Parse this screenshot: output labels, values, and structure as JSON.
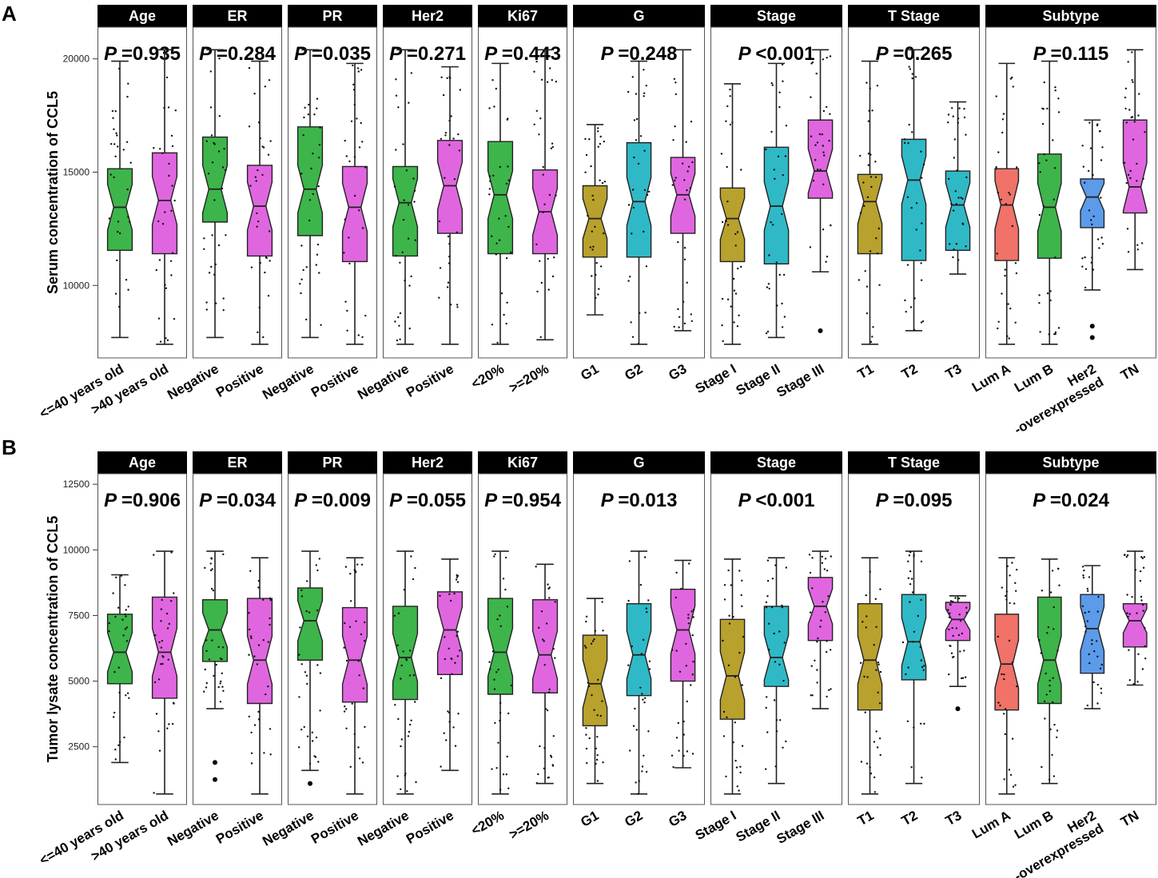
{
  "colors": {
    "green": "#3DB54A",
    "magenta": "#E066E0",
    "olive": "#B8A12C",
    "teal": "#2FB9C6",
    "salmon": "#F07268",
    "blue": "#5B9BEA",
    "strip_bg": "#000000",
    "strip_text": "#ffffff",
    "panel_border": "#555555"
  },
  "chart_data": [
    {
      "type": "boxplot",
      "label": "A",
      "ylabel": "Serum concentration of CCL5",
      "ylim": [
        6800,
        21400
      ],
      "yticks": [
        10000,
        15000,
        20000
      ],
      "facets": [
        {
          "title": "Age",
          "p_value": "=0.935",
          "groups": [
            {
              "name": "<=40 years old",
              "color": "green",
              "whisker_low": 7700,
              "q1": 11550,
              "median": 13450,
              "q3": 15150,
              "whisker_high": 19900,
              "outliers": []
            },
            {
              "name": ">40 years old",
              "color": "magenta",
              "whisker_low": 7400,
              "q1": 11400,
              "median": 13750,
              "q3": 15850,
              "whisker_high": 20400,
              "outliers": []
            }
          ]
        },
        {
          "title": "ER",
          "p_value": "=0.284",
          "groups": [
            {
              "name": "Negative",
              "color": "green",
              "whisker_low": 7700,
              "q1": 12800,
              "median": 14250,
              "q3": 16550,
              "whisker_high": 20400,
              "outliers": []
            },
            {
              "name": "Positive",
              "color": "magenta",
              "whisker_low": 7400,
              "q1": 11300,
              "median": 13500,
              "q3": 15300,
              "whisker_high": 19900,
              "outliers": []
            }
          ]
        },
        {
          "title": "PR",
          "p_value": "=0.035",
          "groups": [
            {
              "name": "Negative",
              "color": "green",
              "whisker_low": 7700,
              "q1": 12200,
              "median": 14250,
              "q3": 17000,
              "whisker_high": 20400,
              "outliers": []
            },
            {
              "name": "Positive",
              "color": "magenta",
              "whisker_low": 7400,
              "q1": 11050,
              "median": 13450,
              "q3": 15250,
              "whisker_high": 19800,
              "outliers": []
            }
          ]
        },
        {
          "title": "Her2",
          "p_value": "=0.271",
          "groups": [
            {
              "name": "Negative",
              "color": "green",
              "whisker_low": 7400,
              "q1": 11300,
              "median": 13650,
              "q3": 15250,
              "whisker_high": 20400,
              "outliers": []
            },
            {
              "name": "Positive",
              "color": "magenta",
              "whisker_low": 7400,
              "q1": 12300,
              "median": 14400,
              "q3": 16400,
              "whisker_high": 19650,
              "outliers": []
            }
          ]
        },
        {
          "title": "Ki67",
          "p_value": "=0.443",
          "groups": [
            {
              "name": "<20%",
              "color": "green",
              "whisker_low": 7400,
              "q1": 11400,
              "median": 14000,
              "q3": 16350,
              "whisker_high": 19800,
              "outliers": []
            },
            {
              "name": ">=20%",
              "color": "magenta",
              "whisker_low": 7600,
              "q1": 11400,
              "median": 13250,
              "q3": 15100,
              "whisker_high": 20400,
              "outliers": []
            }
          ]
        },
        {
          "title": "G",
          "p_value": "=0.248",
          "groups": [
            {
              "name": "G1",
              "color": "olive",
              "whisker_low": 8700,
              "q1": 11250,
              "median": 12950,
              "q3": 14400,
              "whisker_high": 17100,
              "outliers": []
            },
            {
              "name": "G2",
              "color": "teal",
              "whisker_low": 7400,
              "q1": 11250,
              "median": 13700,
              "q3": 16300,
              "whisker_high": 19900,
              "outliers": []
            },
            {
              "name": "G3",
              "color": "magenta",
              "whisker_low": 8000,
              "q1": 12300,
              "median": 14000,
              "q3": 15650,
              "whisker_high": 20400,
              "outliers": []
            }
          ]
        },
        {
          "title": "Stage",
          "p_value": "<0.001",
          "groups": [
            {
              "name": "Stage I",
              "color": "olive",
              "whisker_low": 7400,
              "q1": 11050,
              "median": 12950,
              "q3": 14300,
              "whisker_high": 18900,
              "outliers": []
            },
            {
              "name": "Stage II",
              "color": "teal",
              "whisker_low": 7700,
              "q1": 10950,
              "median": 13500,
              "q3": 16100,
              "whisker_high": 19800,
              "outliers": []
            },
            {
              "name": "Stage III",
              "color": "magenta",
              "whisker_low": 10600,
              "q1": 13850,
              "median": 15050,
              "q3": 17300,
              "whisker_high": 20400,
              "outliers": [
                8000
              ]
            }
          ]
        },
        {
          "title": "T Stage",
          "p_value": "=0.265",
          "groups": [
            {
              "name": "T1",
              "color": "olive",
              "whisker_low": 7400,
              "q1": 11400,
              "median": 13700,
              "q3": 14900,
              "whisker_high": 19900,
              "outliers": []
            },
            {
              "name": "T2",
              "color": "teal",
              "whisker_low": 8000,
              "q1": 11100,
              "median": 14650,
              "q3": 16450,
              "whisker_high": 20400,
              "outliers": []
            },
            {
              "name": "T3",
              "color": "teal",
              "whisker_low": 10500,
              "q1": 11550,
              "median": 13550,
              "q3": 15050,
              "whisker_high": 18100,
              "outliers": []
            }
          ]
        },
        {
          "title": "Subtype",
          "p_value": "=0.115",
          "groups": [
            {
              "name": "Lum A",
              "color": "salmon",
              "whisker_low": 7400,
              "q1": 11100,
              "median": 13550,
              "q3": 15150,
              "whisker_high": 19800,
              "outliers": []
            },
            {
              "name": "Lum B",
              "color": "green",
              "whisker_low": 7400,
              "q1": 11200,
              "median": 13450,
              "q3": 15800,
              "whisker_high": 19900,
              "outliers": []
            },
            {
              "name": "Her2\n-overexpressed",
              "color": "blue",
              "whisker_low": 9800,
              "q1": 12550,
              "median": 13900,
              "q3": 14700,
              "whisker_high": 17300,
              "outliers": [
                8200,
                7700
              ]
            },
            {
              "name": "TN",
              "color": "magenta",
              "whisker_low": 10700,
              "q1": 13200,
              "median": 14350,
              "q3": 17300,
              "whisker_high": 20400,
              "outliers": []
            }
          ]
        }
      ]
    },
    {
      "type": "boxplot",
      "label": "B",
      "ylabel": "Tumor lysate concentration of CCL5",
      "ylim": [
        300,
        12900
      ],
      "yticks": [
        2500,
        5000,
        7500,
        10000,
        12500
      ],
      "facets": [
        {
          "title": "Age",
          "p_value": "=0.906",
          "groups": [
            {
              "name": "<=40 years old",
              "color": "green",
              "whisker_low": 1900,
              "q1": 4900,
              "median": 6100,
              "q3": 7550,
              "whisker_high": 9050,
              "outliers": []
            },
            {
              "name": ">40 years old",
              "color": "magenta",
              "whisker_low": 700,
              "q1": 4350,
              "median": 6100,
              "q3": 8200,
              "whisker_high": 9950,
              "outliers": []
            }
          ]
        },
        {
          "title": "ER",
          "p_value": "=0.034",
          "groups": [
            {
              "name": "Negative",
              "color": "green",
              "whisker_low": 3950,
              "q1": 5750,
              "median": 6950,
              "q3": 8100,
              "whisker_high": 9950,
              "outliers": [
                1900,
                1250
              ]
            },
            {
              "name": "Positive",
              "color": "magenta",
              "whisker_low": 700,
              "q1": 4150,
              "median": 5800,
              "q3": 8150,
              "whisker_high": 9700,
              "outliers": []
            }
          ]
        },
        {
          "title": "PR",
          "p_value": "=0.009",
          "groups": [
            {
              "name": "Negative",
              "color": "green",
              "whisker_low": 1600,
              "q1": 5800,
              "median": 7300,
              "q3": 8550,
              "whisker_high": 9950,
              "outliers": [
                1100
              ]
            },
            {
              "name": "Positive",
              "color": "magenta",
              "whisker_low": 700,
              "q1": 4200,
              "median": 5800,
              "q3": 7800,
              "whisker_high": 9700,
              "outliers": []
            }
          ]
        },
        {
          "title": "Her2",
          "p_value": "=0.055",
          "groups": [
            {
              "name": "Negative",
              "color": "green",
              "whisker_low": 700,
              "q1": 4300,
              "median": 5900,
              "q3": 7850,
              "whisker_high": 9950,
              "outliers": []
            },
            {
              "name": "Positive",
              "color": "magenta",
              "whisker_low": 1600,
              "q1": 5250,
              "median": 6950,
              "q3": 8400,
              "whisker_high": 9650,
              "outliers": []
            }
          ]
        },
        {
          "title": "Ki67",
          "p_value": "=0.954",
          "groups": [
            {
              "name": "<20%",
              "color": "green",
              "whisker_low": 700,
              "q1": 4500,
              "median": 6100,
              "q3": 8150,
              "whisker_high": 9950,
              "outliers": []
            },
            {
              "name": ">=20%",
              "color": "magenta",
              "whisker_low": 1100,
              "q1": 4550,
              "median": 6000,
              "q3": 8100,
              "whisker_high": 9450,
              "outliers": []
            }
          ]
        },
        {
          "title": "G",
          "p_value": "=0.013",
          "groups": [
            {
              "name": "G1",
              "color": "olive",
              "whisker_low": 1100,
              "q1": 3300,
              "median": 4900,
              "q3": 6750,
              "whisker_high": 8150,
              "outliers": []
            },
            {
              "name": "G2",
              "color": "teal",
              "whisker_low": 700,
              "q1": 4450,
              "median": 6000,
              "q3": 7950,
              "whisker_high": 9950,
              "outliers": []
            },
            {
              "name": "G3",
              "color": "magenta",
              "whisker_low": 1700,
              "q1": 5000,
              "median": 6950,
              "q3": 8500,
              "whisker_high": 9600,
              "outliers": []
            }
          ]
        },
        {
          "title": "Stage",
          "p_value": "<0.001",
          "groups": [
            {
              "name": "Stage I",
              "color": "olive",
              "whisker_low": 700,
              "q1": 3550,
              "median": 5200,
              "q3": 7350,
              "whisker_high": 9650,
              "outliers": []
            },
            {
              "name": "Stage II",
              "color": "teal",
              "whisker_low": 1100,
              "q1": 4800,
              "median": 5900,
              "q3": 7850,
              "whisker_high": 9700,
              "outliers": []
            },
            {
              "name": "Stage III",
              "color": "magenta",
              "whisker_low": 3950,
              "q1": 6550,
              "median": 7850,
              "q3": 8950,
              "whisker_high": 9950,
              "outliers": []
            }
          ]
        },
        {
          "title": "T Stage",
          "p_value": "=0.095",
          "groups": [
            {
              "name": "T1",
              "color": "olive",
              "whisker_low": 700,
              "q1": 3900,
              "median": 5800,
              "q3": 7950,
              "whisker_high": 9700,
              "outliers": []
            },
            {
              "name": "T2",
              "color": "teal",
              "whisker_low": 1100,
              "q1": 5050,
              "median": 6500,
              "q3": 8300,
              "whisker_high": 9950,
              "outliers": []
            },
            {
              "name": "T3",
              "color": "magenta",
              "whisker_low": 4800,
              "q1": 6550,
              "median": 7350,
              "q3": 8000,
              "whisker_high": 8250,
              "outliers": [
                3950
              ]
            }
          ]
        },
        {
          "title": "Subtype",
          "p_value": "=0.024",
          "groups": [
            {
              "name": "Lum A",
              "color": "salmon",
              "whisker_low": 700,
              "q1": 3900,
              "median": 5650,
              "q3": 7550,
              "whisker_high": 9700,
              "outliers": []
            },
            {
              "name": "Lum B",
              "color": "green",
              "whisker_low": 1100,
              "q1": 4150,
              "median": 5800,
              "q3": 8200,
              "whisker_high": 9650,
              "outliers": []
            },
            {
              "name": "Her2\n-overexpressed",
              "color": "blue",
              "whisker_low": 3950,
              "q1": 5300,
              "median": 7000,
              "q3": 8300,
              "whisker_high": 9400,
              "outliers": []
            },
            {
              "name": "TN",
              "color": "magenta",
              "whisker_low": 4850,
              "q1": 6300,
              "median": 7300,
              "q3": 7950,
              "whisker_high": 9950,
              "outliers": []
            }
          ]
        }
      ]
    }
  ]
}
